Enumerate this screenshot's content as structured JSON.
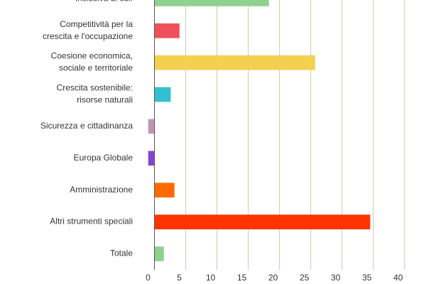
{
  "chart_data": {
    "type": "bar",
    "orientation": "horizontal",
    "categories": [
      "inclusiva di cui:",
      "Competitività per la\ncrescita e l'occupazione",
      "Coesione economica,\nsociale e territoriale",
      "Crescita sostenibile:\nrisorse naturali",
      "Sicurezza e cittadinanza",
      "Europa Globale",
      "Amministrazione",
      "Altri strumenti speciali",
      "Totale"
    ],
    "values": [
      18.3,
      4.0,
      25.7,
      2.6,
      -1.0,
      -1.0,
      3.2,
      34.5,
      1.5
    ],
    "colors": [
      "#8fd18f",
      "#f0505a",
      "#f5d050",
      "#30c0d0",
      "#c096b4",
      "#8444d4",
      "#ff6a00",
      "#ff3300",
      "#8fd18f"
    ],
    "xlim": [
      -1.2,
      41.5
    ],
    "xticks": [
      0,
      5,
      10,
      15,
      20,
      25,
      30,
      35,
      40
    ],
    "grid": true
  }
}
